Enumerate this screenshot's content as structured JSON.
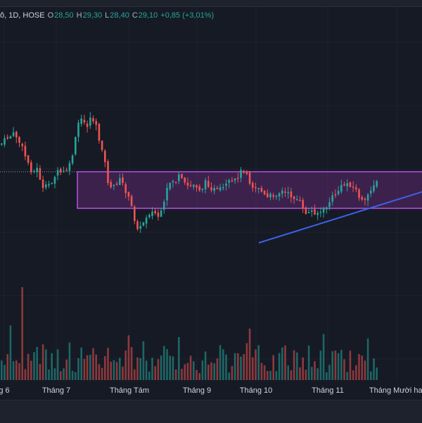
{
  "legend": {
    "symbol": "ô, 1D, HOSE",
    "open_label": "O",
    "open": "28,50",
    "high_label": "H",
    "high": "29,30",
    "low_label": "L",
    "low": "28,40",
    "close_label": "C",
    "close": "29,10",
    "change": "+0,85 (+3,01%)"
  },
  "time_axis": [
    "g 6",
    "Tháng 7",
    "Tháng Tám",
    "Tháng 9",
    "Tháng 10",
    "Tháng 11",
    "Tháng Mười hai"
  ],
  "colors": {
    "background": "#161a25",
    "up": "#26a69a",
    "down": "#ef5350",
    "zone_fill": "#6a2a7e",
    "zone_border": "#b84fe0",
    "trendline": "#3d63e8",
    "price_line": "#9ea3ad"
  },
  "chart_data": {
    "type": "candlestick",
    "interval": "1D",
    "last_bar": {
      "open": 28.5,
      "high": 29.3,
      "low": 28.4,
      "close": 29.1,
      "change": 0.85,
      "change_percent": 3.01
    },
    "annotations": [
      "horizontal zone rectangle",
      "rising trendline",
      "dotted last price line"
    ]
  }
}
